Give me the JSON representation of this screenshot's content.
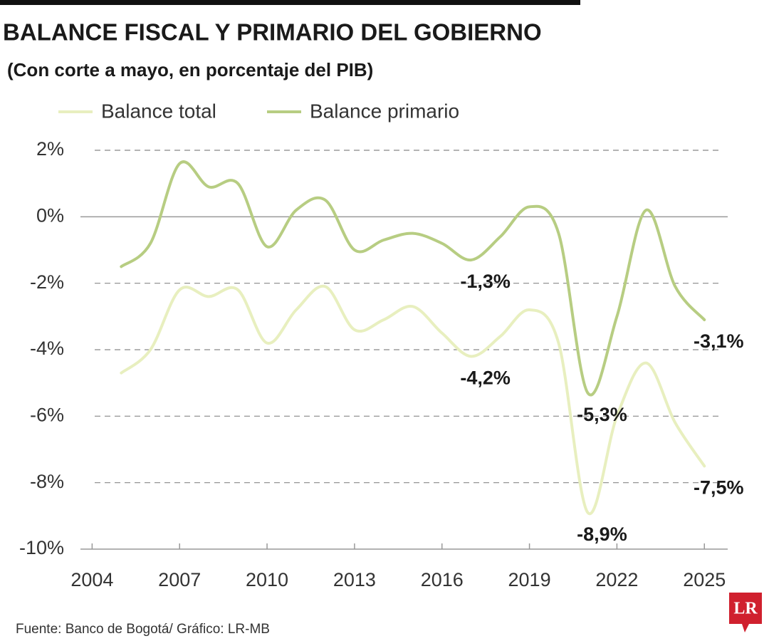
{
  "chart_data": {
    "type": "line",
    "title": "BALANCE FISCAL Y PRIMARIO DEL GOBIERNO",
    "subtitle": "(Con corte a mayo, en porcentaje del PIB)",
    "source": "Fuente: Banco de Bogotá/ Gráfico: LR-MB",
    "logo": "LR",
    "x": [
      2005,
      2006,
      2007,
      2008,
      2009,
      2010,
      2011,
      2012,
      2013,
      2014,
      2015,
      2016,
      2017,
      2018,
      2019,
      2020,
      2021,
      2022,
      2023,
      2024,
      2025
    ],
    "series": [
      {
        "name": "Balance total",
        "color": "#e8efbf",
        "values": [
          -4.7,
          -4.0,
          -2.2,
          -2.4,
          -2.2,
          -3.8,
          -2.8,
          -2.1,
          -3.4,
          -3.1,
          -2.7,
          -3.5,
          -4.2,
          -3.6,
          -2.8,
          -3.8,
          -8.9,
          -6.0,
          -4.4,
          -6.2,
          -7.5
        ],
        "value_labels": [
          null,
          null,
          null,
          null,
          null,
          null,
          null,
          null,
          null,
          null,
          null,
          null,
          "-4,2%",
          null,
          null,
          null,
          "-8,9%",
          null,
          null,
          null,
          "-7,5%"
        ]
      },
      {
        "name": "Balance primario",
        "color": "#b7cd82",
        "values": [
          -1.5,
          -0.8,
          1.6,
          0.9,
          1.0,
          -0.9,
          0.2,
          0.5,
          -1.0,
          -0.7,
          -0.5,
          -0.8,
          -1.3,
          -0.6,
          0.3,
          -0.5,
          -5.3,
          -3.0,
          0.2,
          -2.1,
          -3.1
        ],
        "value_labels": [
          null,
          null,
          null,
          null,
          null,
          null,
          null,
          null,
          null,
          null,
          null,
          null,
          "-1,3%",
          null,
          null,
          null,
          "-5,3%",
          null,
          null,
          null,
          "-3,1%"
        ]
      }
    ],
    "xlim": [
      2003.6,
      2025.8
    ],
    "xticks": [
      2004,
      2007,
      2010,
      2013,
      2016,
      2019,
      2022,
      2025
    ],
    "ylim": [
      -10,
      2
    ],
    "yticks": [
      {
        "value": -10,
        "label": "-10%"
      },
      {
        "value": -8,
        "label": "-8%"
      },
      {
        "value": -6,
        "label": "-6%"
      },
      {
        "value": -4,
        "label": "-4%"
      },
      {
        "value": -2,
        "label": "-2%"
      },
      {
        "value": 0,
        "label": "0%"
      },
      {
        "value": 2,
        "label": "2%"
      }
    ],
    "grid": true,
    "legend": "top"
  }
}
